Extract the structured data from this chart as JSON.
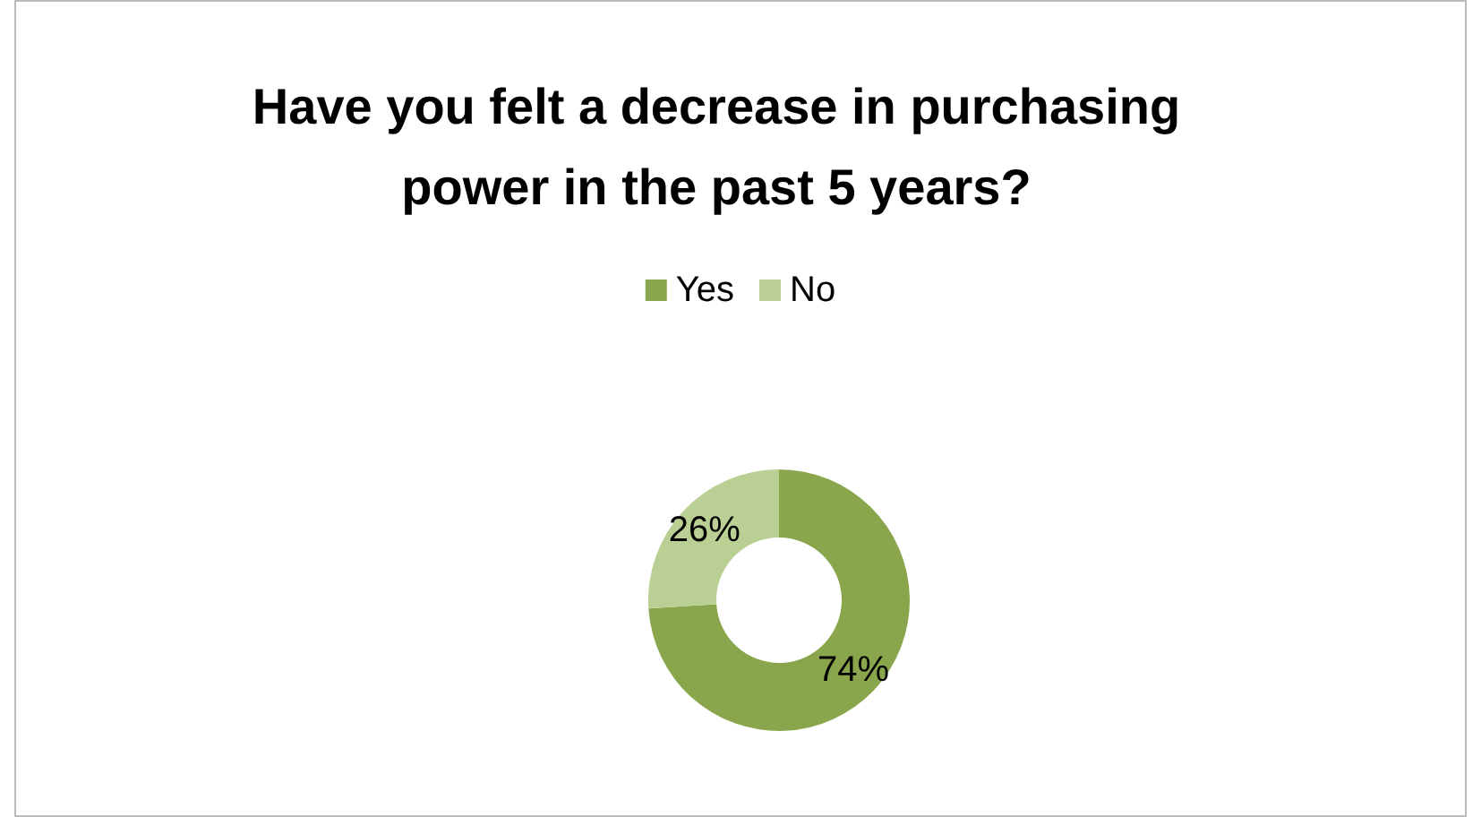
{
  "chart_data": {
    "type": "donut",
    "title": "Have you felt a decrease in purchasing\npower in the past 5 years?",
    "categories": [
      "Yes",
      "No"
    ],
    "values": [
      74,
      26
    ],
    "colors": [
      "#8aa64c",
      "#b9cf93"
    ],
    "value_labels": [
      "74%",
      "26%"
    ],
    "legend": "top"
  }
}
